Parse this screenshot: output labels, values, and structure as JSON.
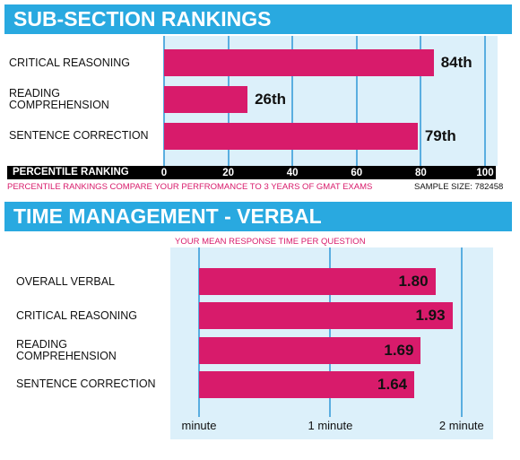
{
  "chart_data": [
    {
      "type": "bar",
      "title": "SUB-SECTION RANKINGS",
      "categories": [
        "CRITICAL REASONING",
        "READING COMPREHENSION",
        "SENTENCE CORRECTION"
      ],
      "values": [
        84,
        26,
        79
      ],
      "value_labels": [
        "84th",
        "26th",
        "79th"
      ],
      "color": "#d81b6b",
      "xlim": [
        0,
        100
      ],
      "xticks": [
        0,
        20,
        40,
        60,
        80,
        100
      ],
      "xlabel": "PERCENTILE RANKING",
      "note": "PERCENTILE RANKINGS COMPARE YOUR PERFROMANCE TO 3 YEARS OF GMAT EXAMS",
      "sample_size": "SAMPLE SIZE: 782458",
      "grid": true
    },
    {
      "type": "bar",
      "title": "TIME MANAGEMENT - VERBAL",
      "subtitle": "YOUR MEAN RESPONSE TIME PER QUESTION",
      "categories": [
        "OVERALL VERBAL",
        "CRITICAL REASONING",
        "READING COMPREHENSION",
        "SENTENCE CORRECTION"
      ],
      "values": [
        1.8,
        1.93,
        1.69,
        1.64
      ],
      "value_labels": [
        "1.80",
        "1.93",
        "1.69",
        "1.64"
      ],
      "color": "#d81b6b",
      "xlim": [
        0,
        2.24
      ],
      "xticks": [
        {
          "value": 0,
          "label": "minute"
        },
        {
          "value": 1,
          "label": "1 minute"
        },
        {
          "value": 2,
          "label": "2 minute"
        }
      ],
      "grid": true
    }
  ]
}
